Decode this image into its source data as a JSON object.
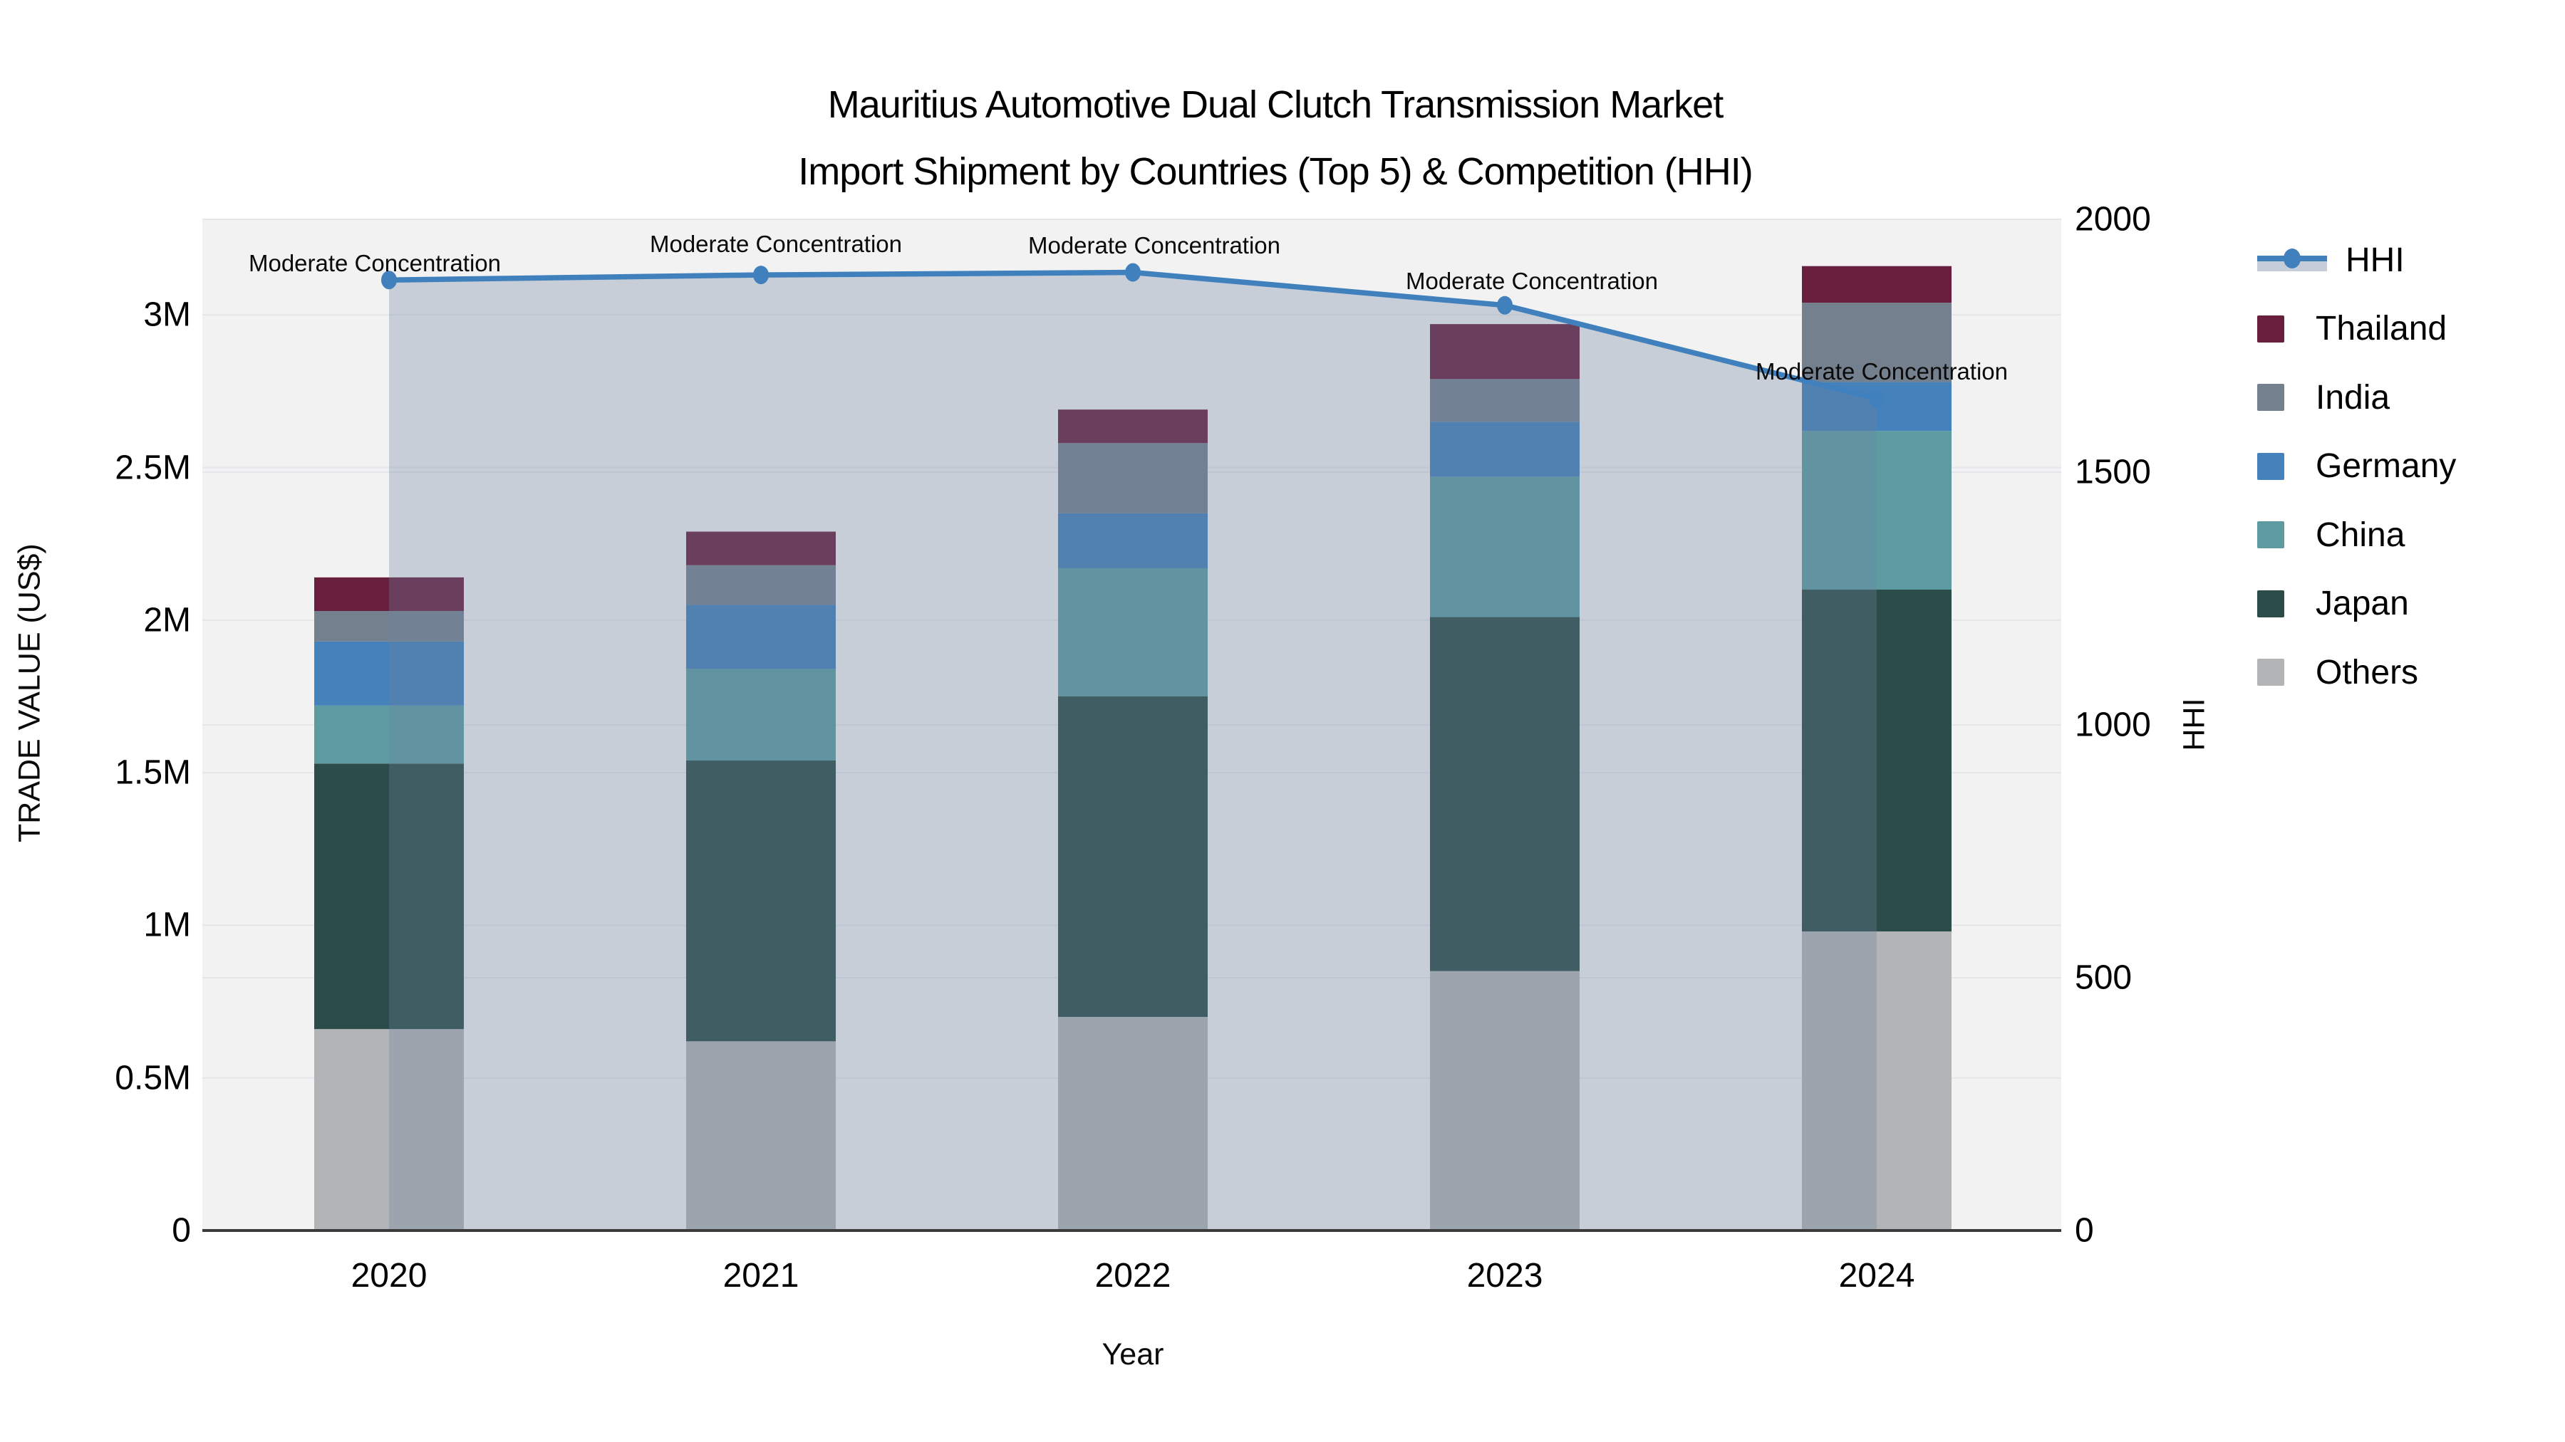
{
  "title": {
    "line1": "Mauritius Automotive Dual Clutch Transmission Market",
    "line2": "Import Shipment by Countries (Top 5) & Competition (HHI)"
  },
  "axes": {
    "y_left": {
      "title": "TRADE VALUE (US$)",
      "ticks": [
        {
          "label": "0",
          "value": 0
        },
        {
          "label": "0.5M",
          "value": 0.5
        },
        {
          "label": "1M",
          "value": 1
        },
        {
          "label": "1.5M",
          "value": 1.5
        },
        {
          "label": "2M",
          "value": 2
        },
        {
          "label": "2.5M",
          "value": 2.5
        },
        {
          "label": "3M",
          "value": 3
        }
      ]
    },
    "y_right": {
      "title": "HHI",
      "ticks": [
        {
          "label": "0",
          "value": 0
        },
        {
          "label": "500",
          "value": 500
        },
        {
          "label": "1000",
          "value": 1000
        },
        {
          "label": "1500",
          "value": 1500
        },
        {
          "label": "2000",
          "value": 2000
        }
      ]
    },
    "x": {
      "title": "Year",
      "categories": [
        "2020",
        "2021",
        "2022",
        "2023",
        "2024"
      ]
    }
  },
  "legend": {
    "items": [
      {
        "label": "HHI",
        "type": "line",
        "color": "#4080bd",
        "fill": "#c5cdd9"
      },
      {
        "label": "Thailand",
        "type": "swatch",
        "color": "#681f3e"
      },
      {
        "label": "India",
        "type": "swatch",
        "color": "#75808f"
      },
      {
        "label": "Germany",
        "type": "swatch",
        "color": "#4581ba"
      },
      {
        "label": "China",
        "type": "swatch",
        "color": "#5d9ba1"
      },
      {
        "label": "Japan",
        "type": "swatch",
        "color": "#2c4c49"
      },
      {
        "label": "Others",
        "type": "swatch",
        "color": "#b3b4b6"
      }
    ]
  },
  "chart_data": {
    "type": "bar",
    "stacked": true,
    "title": "Mauritius Automotive Dual Clutch Transmission Market — Import Shipment by Countries (Top 5) & Competition (HHI)",
    "categories": [
      "2020",
      "2021",
      "2022",
      "2023",
      "2024"
    ],
    "values_unit": "million US$",
    "series": [
      {
        "name": "Others",
        "color": "#b3b4b6",
        "values": [
          0.66,
          0.62,
          0.7,
          0.85,
          0.98
        ]
      },
      {
        "name": "Japan",
        "color": "#2c4c49",
        "values": [
          0.87,
          0.92,
          1.05,
          1.16,
          1.12
        ]
      },
      {
        "name": "China",
        "color": "#5d9ba1",
        "values": [
          0.19,
          0.3,
          0.42,
          0.46,
          0.52
        ]
      },
      {
        "name": "Germany",
        "color": "#4581ba",
        "values": [
          0.21,
          0.21,
          0.18,
          0.18,
          0.16
        ]
      },
      {
        "name": "India",
        "color": "#75808f",
        "values": [
          0.1,
          0.13,
          0.23,
          0.14,
          0.26
        ]
      },
      {
        "name": "Thailand",
        "color": "#681f3e",
        "values": [
          0.11,
          0.11,
          0.11,
          0.18,
          0.12
        ]
      }
    ],
    "bar_totals": [
      2.14,
      2.29,
      2.69,
      2.97,
      3.16
    ],
    "line_series": {
      "name": "HHI",
      "axis": "right",
      "color": "#4080bd",
      "area_fill": "rgba(110,132,158,0.32)",
      "values": [
        1880,
        1890,
        1895,
        1830,
        1645
      ]
    },
    "point_annotations": [
      "Moderate Concentration",
      "Moderate Concentration",
      "Moderate Concentration",
      "Moderate Concentration",
      "Moderate Concentration"
    ],
    "xlabel": "Year",
    "ylabel_left": "TRADE VALUE (US$)",
    "ylabel_right": "HHI",
    "ylim_left": [
      0,
      3313333
    ],
    "ylim_right": [
      0,
      2000
    ],
    "grid": true,
    "legend_position": "right",
    "plot_bg": "#f2f2f2"
  }
}
